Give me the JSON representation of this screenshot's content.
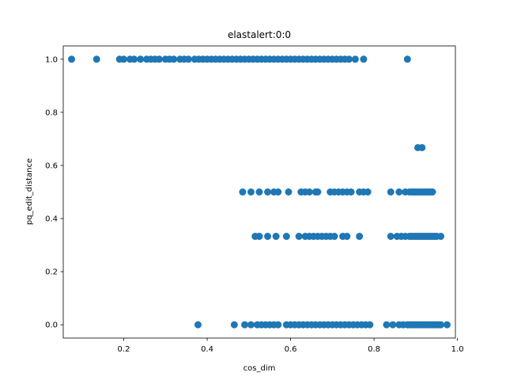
{
  "chart_data": {
    "type": "scatter",
    "title": "elastalert:0:0",
    "xlabel": "cos_dim",
    "ylabel": "pq_edit_distance",
    "xlim": [
      0.055,
      0.995
    ],
    "ylim": [
      -0.05,
      1.05
    ],
    "xticks": [
      {
        "value": 0.2,
        "label": "0.2"
      },
      {
        "value": 0.4,
        "label": "0.4"
      },
      {
        "value": 0.6,
        "label": "0.6"
      },
      {
        "value": 0.8,
        "label": "0.8"
      },
      {
        "value": 1.0,
        "label": "1.0"
      }
    ],
    "yticks": [
      {
        "value": 0.0,
        "label": "0.0"
      },
      {
        "value": 0.2,
        "label": "0.2"
      },
      {
        "value": 0.4,
        "label": "0.4"
      },
      {
        "value": 0.6,
        "label": "0.6"
      },
      {
        "value": 0.8,
        "label": "0.8"
      },
      {
        "value": 1.0,
        "label": "1.0"
      }
    ],
    "grid": false,
    "marker_color": "#1f77b4",
    "series": [
      {
        "x": [
          0.075,
          0.135,
          0.19,
          0.2,
          0.215,
          0.225,
          0.24,
          0.255,
          0.265,
          0.275,
          0.285,
          0.3,
          0.31,
          0.32,
          0.335,
          0.345,
          0.355,
          0.37,
          0.38,
          0.39,
          0.4,
          0.41,
          0.42,
          0.43,
          0.44,
          0.45,
          0.46,
          0.47,
          0.48,
          0.49,
          0.5,
          0.51,
          0.52,
          0.53,
          0.54,
          0.55,
          0.56,
          0.57,
          0.58,
          0.59,
          0.6,
          0.61,
          0.62,
          0.63,
          0.64,
          0.65,
          0.66,
          0.67,
          0.68,
          0.69,
          0.7,
          0.71,
          0.72,
          0.73,
          0.74,
          0.755,
          0.775,
          0.88,
          0.905,
          0.915,
          0.485,
          0.505,
          0.525,
          0.545,
          0.56,
          0.57,
          0.595,
          0.625,
          0.635,
          0.645,
          0.66,
          0.665,
          0.695,
          0.705,
          0.715,
          0.725,
          0.735,
          0.745,
          0.765,
          0.775,
          0.785,
          0.84,
          0.86,
          0.875,
          0.885,
          0.89,
          0.895,
          0.9,
          0.905,
          0.91,
          0.915,
          0.92,
          0.925,
          0.93,
          0.935,
          0.94,
          0.515,
          0.525,
          0.545,
          0.565,
          0.59,
          0.62,
          0.635,
          0.645,
          0.655,
          0.665,
          0.675,
          0.685,
          0.695,
          0.705,
          0.725,
          0.735,
          0.765,
          0.84,
          0.855,
          0.865,
          0.875,
          0.885,
          0.89,
          0.895,
          0.9,
          0.905,
          0.91,
          0.915,
          0.92,
          0.925,
          0.93,
          0.935,
          0.94,
          0.945,
          0.95,
          0.96,
          0.378,
          0.465,
          0.49,
          0.505,
          0.52,
          0.53,
          0.54,
          0.55,
          0.56,
          0.57,
          0.59,
          0.6,
          0.61,
          0.62,
          0.63,
          0.64,
          0.65,
          0.66,
          0.67,
          0.68,
          0.69,
          0.7,
          0.71,
          0.72,
          0.73,
          0.74,
          0.75,
          0.76,
          0.77,
          0.78,
          0.79,
          0.83,
          0.845,
          0.86,
          0.87,
          0.88,
          0.885,
          0.89,
          0.895,
          0.9,
          0.905,
          0.91,
          0.915,
          0.92,
          0.925,
          0.93,
          0.935,
          0.94,
          0.945,
          0.95,
          0.955,
          0.96,
          0.975
        ],
        "y": [
          1.0,
          1.0,
          1.0,
          1.0,
          1.0,
          1.0,
          1.0,
          1.0,
          1.0,
          1.0,
          1.0,
          1.0,
          1.0,
          1.0,
          1.0,
          1.0,
          1.0,
          1.0,
          1.0,
          1.0,
          1.0,
          1.0,
          1.0,
          1.0,
          1.0,
          1.0,
          1.0,
          1.0,
          1.0,
          1.0,
          1.0,
          1.0,
          1.0,
          1.0,
          1.0,
          1.0,
          1.0,
          1.0,
          1.0,
          1.0,
          1.0,
          1.0,
          1.0,
          1.0,
          1.0,
          1.0,
          1.0,
          1.0,
          1.0,
          1.0,
          1.0,
          1.0,
          1.0,
          1.0,
          1.0,
          1.0,
          1.0,
          1.0,
          0.667,
          0.667,
          0.5,
          0.5,
          0.5,
          0.5,
          0.5,
          0.5,
          0.5,
          0.5,
          0.5,
          0.5,
          0.5,
          0.5,
          0.5,
          0.5,
          0.5,
          0.5,
          0.5,
          0.5,
          0.5,
          0.5,
          0.5,
          0.5,
          0.5,
          0.5,
          0.5,
          0.5,
          0.5,
          0.5,
          0.5,
          0.5,
          0.5,
          0.5,
          0.5,
          0.5,
          0.5,
          0.5,
          0.333,
          0.333,
          0.333,
          0.333,
          0.333,
          0.333,
          0.333,
          0.333,
          0.333,
          0.333,
          0.333,
          0.333,
          0.333,
          0.333,
          0.333,
          0.333,
          0.333,
          0.333,
          0.333,
          0.333,
          0.333,
          0.333,
          0.333,
          0.333,
          0.333,
          0.333,
          0.333,
          0.333,
          0.333,
          0.333,
          0.333,
          0.333,
          0.333,
          0.333,
          0.333,
          0.333,
          0.0,
          0.0,
          0.0,
          0.0,
          0.0,
          0.0,
          0.0,
          0.0,
          0.0,
          0.0,
          0.0,
          0.0,
          0.0,
          0.0,
          0.0,
          0.0,
          0.0,
          0.0,
          0.0,
          0.0,
          0.0,
          0.0,
          0.0,
          0.0,
          0.0,
          0.0,
          0.0,
          0.0,
          0.0,
          0.0,
          0.0,
          0.0,
          0.0,
          0.0,
          0.0,
          0.0,
          0.0,
          0.0,
          0.0,
          0.0,
          0.0,
          0.0,
          0.0,
          0.0,
          0.0,
          0.0,
          0.0,
          0.0,
          0.0,
          0.0,
          0.0,
          0.0,
          0.0
        ]
      }
    ]
  }
}
